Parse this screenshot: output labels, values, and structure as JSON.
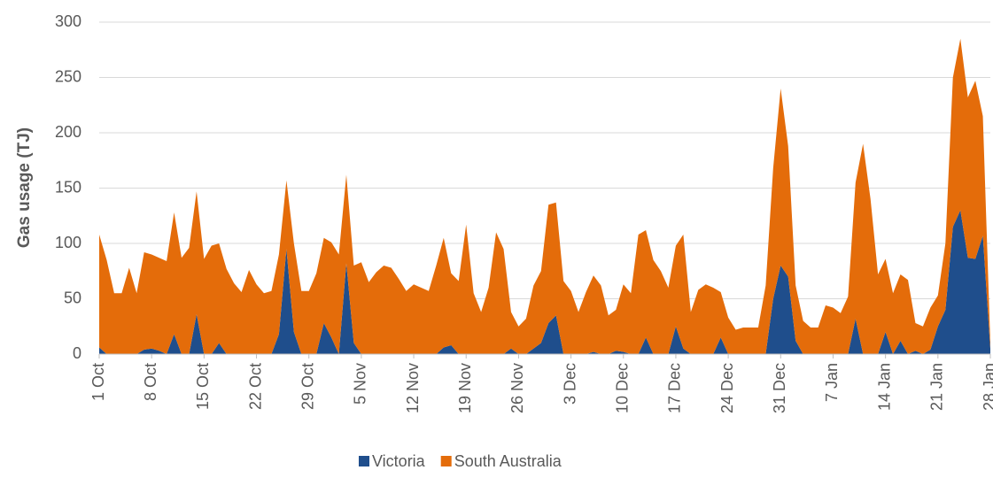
{
  "chart_data": {
    "type": "stacked_area",
    "y_label": "Gas usage (TJ)",
    "categories": [
      "1 Oct",
      null,
      null,
      null,
      null,
      null,
      null,
      "8 Oct",
      null,
      null,
      null,
      null,
      null,
      null,
      "15 Oct",
      null,
      null,
      null,
      null,
      null,
      null,
      "22 Oct",
      null,
      null,
      null,
      null,
      null,
      null,
      "29 Oct",
      null,
      null,
      null,
      null,
      null,
      null,
      "5 Nov",
      null,
      null,
      null,
      null,
      null,
      null,
      "12 Nov",
      null,
      null,
      null,
      null,
      null,
      null,
      "19 Nov",
      null,
      null,
      null,
      null,
      null,
      null,
      "26 Nov",
      null,
      null,
      null,
      null,
      null,
      null,
      "3 Dec",
      null,
      null,
      null,
      null,
      null,
      null,
      "10 Dec",
      null,
      null,
      null,
      null,
      null,
      null,
      "17 Dec",
      null,
      null,
      null,
      null,
      null,
      null,
      "24 Dec",
      null,
      null,
      null,
      null,
      null,
      null,
      "31 Dec",
      null,
      null,
      null,
      null,
      null,
      null,
      "7 Jan",
      null,
      null,
      null,
      null,
      null,
      null,
      "14 Jan",
      null,
      null,
      null,
      null,
      null,
      null,
      "21 Jan",
      null,
      null,
      null,
      null,
      null,
      null,
      "28 Jan"
    ],
    "series": [
      {
        "name": "Victoria",
        "color": "#1f4e8c",
        "values": [
          6,
          0,
          0,
          0,
          0,
          0,
          4,
          5,
          3,
          0,
          18,
          0,
          0,
          36,
          0,
          0,
          10,
          0,
          0,
          0,
          0,
          0,
          0,
          0,
          18,
          95,
          20,
          0,
          0,
          0,
          28,
          15,
          0,
          82,
          10,
          0,
          0,
          0,
          0,
          0,
          0,
          0,
          0,
          0,
          0,
          0,
          6,
          8,
          0,
          0,
          0,
          0,
          0,
          0,
          0,
          5,
          0,
          0,
          5,
          10,
          28,
          35,
          0,
          0,
          0,
          0,
          2,
          0,
          0,
          3,
          2,
          0,
          0,
          15,
          0,
          0,
          0,
          25,
          5,
          0,
          0,
          0,
          0,
          15,
          0,
          0,
          0,
          0,
          0,
          0,
          50,
          80,
          70,
          12,
          0,
          0,
          0,
          0,
          0,
          0,
          0,
          32,
          0,
          0,
          0,
          20,
          0,
          12,
          0,
          3,
          0,
          4,
          25,
          40,
          115,
          130,
          87,
          86,
          107,
          5
        ]
      },
      {
        "name": "South Australia",
        "color": "#e46c0a",
        "values": [
          102,
          85,
          55,
          55,
          78,
          55,
          88,
          85,
          84,
          84,
          110,
          87,
          96,
          111,
          86,
          98,
          90,
          77,
          64,
          56,
          76,
          63,
          55,
          57,
          72,
          62,
          80,
          57,
          57,
          73,
          77,
          86,
          90,
          80,
          70,
          83,
          65,
          74,
          80,
          78,
          68,
          57,
          63,
          60,
          57,
          80,
          99,
          65,
          66,
          117,
          55,
          38,
          60,
          110,
          95,
          33,
          25,
          32,
          57,
          65,
          107,
          102,
          66,
          57,
          38,
          56,
          69,
          62,
          35,
          37,
          61,
          55,
          108,
          97,
          85,
          75,
          60,
          73,
          103,
          38,
          58,
          63,
          60,
          41,
          33,
          22,
          24,
          24,
          24,
          62,
          118,
          160,
          118,
          50,
          30,
          24,
          24,
          44,
          42,
          37,
          52,
          123,
          190,
          140,
          72,
          66,
          55,
          60,
          67,
          25,
          25,
          38,
          28,
          60,
          135,
          155,
          145,
          161,
          108,
          5
        ]
      }
    ],
    "ylim": [
      0,
      300
    ],
    "yticks": [
      0,
      50,
      100,
      150,
      200,
      250,
      300
    ],
    "grid": true,
    "legend": "bottom"
  }
}
